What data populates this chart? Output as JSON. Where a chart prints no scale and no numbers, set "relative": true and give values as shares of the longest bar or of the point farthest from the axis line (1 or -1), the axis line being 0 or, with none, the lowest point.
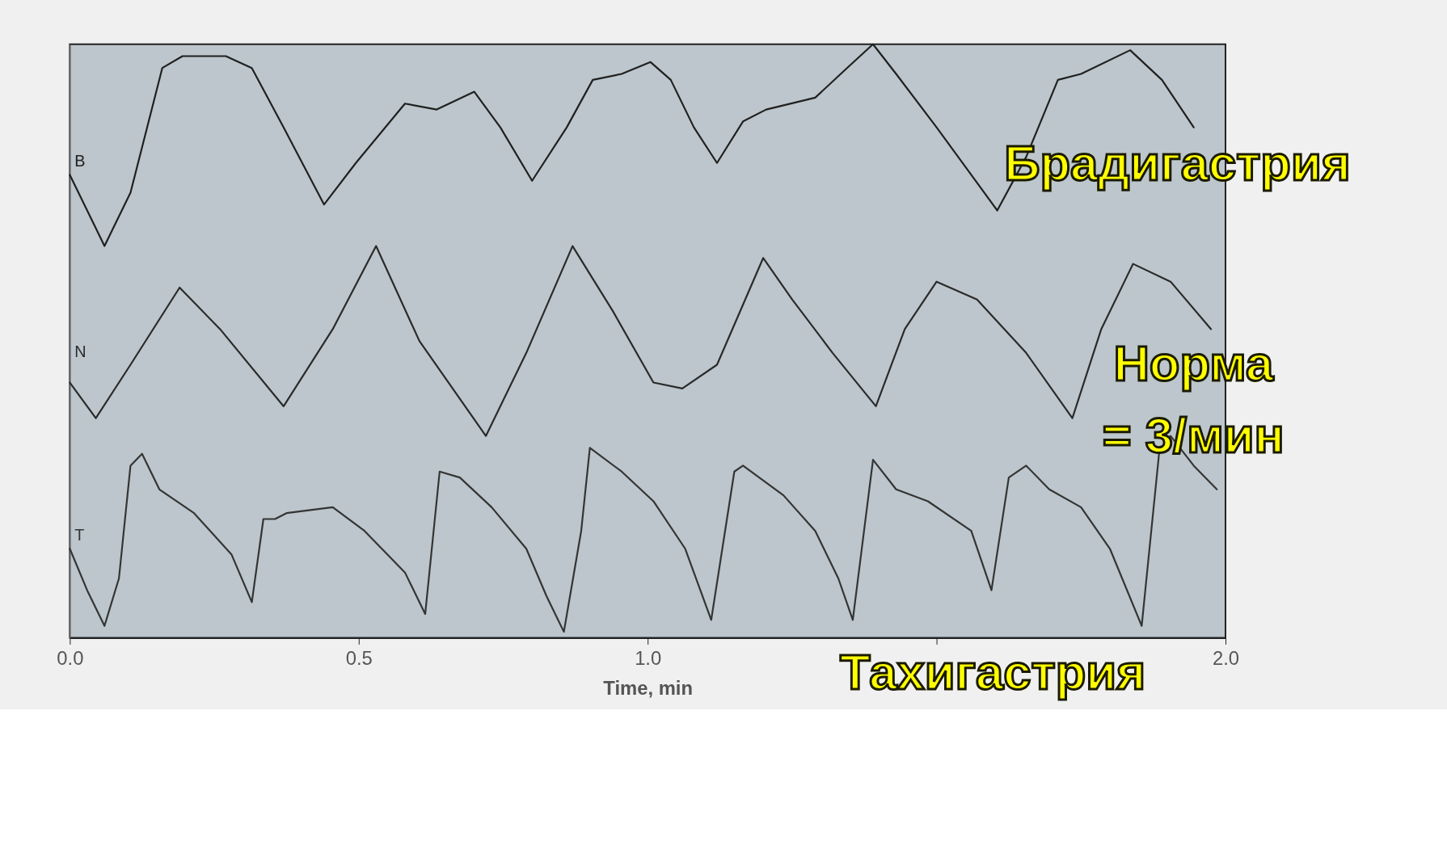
{
  "chart_data": {
    "type": "line",
    "relative": true,
    "xlabel": "Time, min",
    "xlim": [
      0,
      2
    ],
    "xticks": [
      {
        "value": 0,
        "label": "0.0"
      },
      {
        "value": 0.5,
        "label": "0.5"
      },
      {
        "value": 1,
        "label": "1.0"
      },
      {
        "value": 1.5,
        "label": null
      },
      {
        "value": 2,
        "label": "2.0"
      }
    ],
    "grid": false,
    "legend": false,
    "marker": "none",
    "line_style": "solid",
    "series": [
      {
        "name": "B",
        "color": "#202020",
        "x": [
          0,
          0.06,
          0.105,
          0.16,
          0.195,
          0.27,
          0.315,
          0.37,
          0.44,
          0.495,
          0.58,
          0.635,
          0.7,
          0.745,
          0.8,
          0.86,
          0.905,
          0.955,
          1.005,
          1.04,
          1.08,
          1.12,
          1.165,
          1.205,
          1.29,
          1.345,
          1.39,
          1.43,
          1.5,
          1.605,
          1.655,
          1.71,
          1.75,
          1.835,
          1.89,
          1.945
        ],
        "values": [
          0.78,
          0.66,
          0.75,
          0.96,
          0.98,
          0.98,
          0.96,
          0.86,
          0.73,
          0.8,
          0.9,
          0.89,
          0.92,
          0.86,
          0.77,
          0.86,
          0.94,
          0.95,
          0.97,
          0.94,
          0.86,
          0.8,
          0.87,
          0.89,
          0.91,
          0.96,
          1,
          0.95,
          0.86,
          0.72,
          0.81,
          0.94,
          0.95,
          0.99,
          0.94,
          0.86
        ]
      },
      {
        "name": "N",
        "color": "#2a2a2a",
        "x": [
          0,
          0.045,
          0.105,
          0.19,
          0.26,
          0.37,
          0.455,
          0.53,
          0.605,
          0.72,
          0.79,
          0.87,
          0.94,
          1.01,
          1.06,
          1.12,
          1.2,
          1.25,
          1.32,
          1.395,
          1.445,
          1.5,
          1.57,
          1.655,
          1.735,
          1.785,
          1.84,
          1.905,
          1.975
        ],
        "values": [
          0.43,
          0.37,
          0.46,
          0.59,
          0.52,
          0.39,
          0.52,
          0.66,
          0.5,
          0.34,
          0.48,
          0.66,
          0.55,
          0.43,
          0.42,
          0.46,
          0.64,
          0.57,
          0.48,
          0.39,
          0.52,
          0.6,
          0.57,
          0.48,
          0.37,
          0.52,
          0.63,
          0.6,
          0.52
        ]
      },
      {
        "name": "T",
        "color": "#343434",
        "x": [
          0,
          0.03,
          0.06,
          0.085,
          0.105,
          0.125,
          0.155,
          0.215,
          0.28,
          0.315,
          0.335,
          0.355,
          0.375,
          0.455,
          0.51,
          0.58,
          0.615,
          0.64,
          0.675,
          0.73,
          0.79,
          0.825,
          0.855,
          0.885,
          0.9,
          0.955,
          1.01,
          1.065,
          1.11,
          1.15,
          1.165,
          1.235,
          1.29,
          1.33,
          1.355,
          1.39,
          1.43,
          1.485,
          1.56,
          1.595,
          1.625,
          1.655,
          1.695,
          1.75,
          1.8,
          1.855,
          1.885,
          1.905,
          1.945,
          1.985
        ],
        "values": [
          0.15,
          0.08,
          0.02,
          0.1,
          0.29,
          0.31,
          0.25,
          0.21,
          0.14,
          0.06,
          0.2,
          0.2,
          0.21,
          0.22,
          0.18,
          0.11,
          0.04,
          0.28,
          0.27,
          0.22,
          0.15,
          0.07,
          0.01,
          0.18,
          0.32,
          0.28,
          0.23,
          0.15,
          0.03,
          0.28,
          0.29,
          0.24,
          0.18,
          0.1,
          0.03,
          0.3,
          0.25,
          0.23,
          0.18,
          0.08,
          0.27,
          0.29,
          0.25,
          0.22,
          0.15,
          0.02,
          0.31,
          0.34,
          0.29,
          0.25
        ]
      }
    ],
    "annotations": [
      "Брадигастрия",
      "Норма\n= 3/мин",
      "Тахигастрия"
    ]
  }
}
